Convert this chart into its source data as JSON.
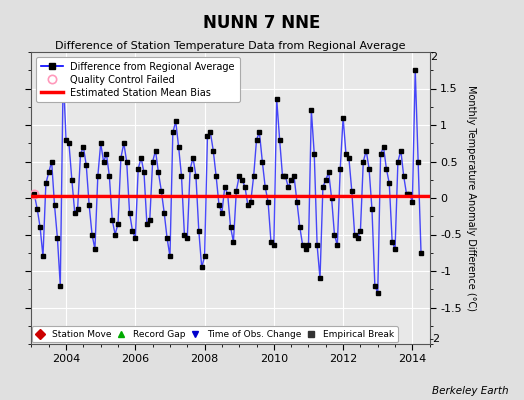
{
  "title": "NUNN 7 NNE",
  "subtitle": "Difference of Station Temperature Data from Regional Average",
  "ylabel": "Monthly Temperature Anomaly Difference (°C)",
  "bias": 0.03,
  "xlim": [
    2003.0,
    2014.5
  ],
  "ylim": [
    -2.0,
    2.0
  ],
  "yticks": [
    -1.5,
    -1.0,
    -0.5,
    0.0,
    0.5,
    1.0,
    1.5
  ],
  "ytick_labels": [
    "-1.5",
    "-1",
    "-0.5",
    "0",
    "0.5",
    "1",
    "1.5"
  ],
  "xticks": [
    2004,
    2006,
    2008,
    2010,
    2012,
    2014
  ],
  "fig_bg_color": "#e0e0e0",
  "plot_bg_color": "#e8e8e8",
  "line_color": "#0000ff",
  "marker_color": "#000000",
  "bias_color": "#ff0000",
  "times": [
    2003.083,
    2003.167,
    2003.25,
    2003.333,
    2003.417,
    2003.5,
    2003.583,
    2003.667,
    2003.75,
    2003.833,
    2003.917,
    2004.0,
    2004.083,
    2004.167,
    2004.25,
    2004.333,
    2004.417,
    2004.5,
    2004.583,
    2004.667,
    2004.75,
    2004.833,
    2004.917,
    2005.0,
    2005.083,
    2005.167,
    2005.25,
    2005.333,
    2005.417,
    2005.5,
    2005.583,
    2005.667,
    2005.75,
    2005.833,
    2005.917,
    2006.0,
    2006.083,
    2006.167,
    2006.25,
    2006.333,
    2006.417,
    2006.5,
    2006.583,
    2006.667,
    2006.75,
    2006.833,
    2006.917,
    2007.0,
    2007.083,
    2007.167,
    2007.25,
    2007.333,
    2007.417,
    2007.5,
    2007.583,
    2007.667,
    2007.75,
    2007.833,
    2007.917,
    2008.0,
    2008.083,
    2008.167,
    2008.25,
    2008.333,
    2008.417,
    2008.5,
    2008.583,
    2008.667,
    2008.75,
    2008.833,
    2008.917,
    2009.0,
    2009.083,
    2009.167,
    2009.25,
    2009.333,
    2009.417,
    2009.5,
    2009.583,
    2009.667,
    2009.75,
    2009.833,
    2009.917,
    2010.0,
    2010.083,
    2010.167,
    2010.25,
    2010.333,
    2010.417,
    2010.5,
    2010.583,
    2010.667,
    2010.75,
    2010.833,
    2010.917,
    2011.0,
    2011.083,
    2011.167,
    2011.25,
    2011.333,
    2011.417,
    2011.5,
    2011.583,
    2011.667,
    2011.75,
    2011.833,
    2011.917,
    2012.0,
    2012.083,
    2012.167,
    2012.25,
    2012.333,
    2012.417,
    2012.5,
    2012.583,
    2012.667,
    2012.75,
    2012.833,
    2012.917,
    2013.0,
    2013.083,
    2013.167,
    2013.25,
    2013.333,
    2013.417,
    2013.5,
    2013.583,
    2013.667,
    2013.75,
    2013.833,
    2013.917,
    2014.0,
    2014.083,
    2014.167,
    2014.25
  ],
  "values": [
    0.05,
    -0.15,
    -0.4,
    -0.8,
    0.2,
    0.35,
    0.5,
    -0.1,
    -0.55,
    -1.2,
    1.7,
    0.8,
    0.75,
    0.25,
    -0.2,
    -0.15,
    0.6,
    0.7,
    0.45,
    -0.1,
    -0.5,
    -0.7,
    0.3,
    0.75,
    0.5,
    0.6,
    0.3,
    -0.3,
    -0.5,
    -0.35,
    0.55,
    0.75,
    0.5,
    -0.2,
    -0.45,
    -0.55,
    0.4,
    0.55,
    0.35,
    -0.35,
    -0.3,
    0.5,
    0.65,
    0.35,
    0.1,
    -0.2,
    -0.55,
    -0.8,
    0.9,
    1.05,
    0.7,
    0.3,
    -0.5,
    -0.55,
    0.4,
    0.55,
    0.3,
    -0.45,
    -0.95,
    -0.8,
    0.85,
    0.9,
    0.65,
    0.3,
    -0.1,
    -0.2,
    0.15,
    0.05,
    -0.4,
    -0.6,
    0.1,
    0.3,
    0.25,
    0.15,
    -0.1,
    -0.05,
    0.3,
    0.8,
    0.9,
    0.5,
    0.15,
    -0.05,
    -0.6,
    -0.65,
    1.35,
    0.8,
    0.3,
    0.3,
    0.15,
    0.25,
    0.3,
    -0.05,
    -0.4,
    -0.65,
    -0.7,
    -0.65,
    1.2,
    0.6,
    -0.65,
    -1.1,
    0.15,
    0.25,
    0.35,
    0.0,
    -0.5,
    -0.65,
    0.4,
    1.1,
    0.6,
    0.55,
    0.1,
    -0.5,
    -0.55,
    -0.45,
    0.5,
    0.65,
    0.4,
    -0.15,
    -1.2,
    -1.3,
    0.6,
    0.7,
    0.4,
    0.2,
    -0.6,
    -0.7,
    0.5,
    0.65,
    0.3,
    0.05,
    0.05,
    -0.05,
    1.75,
    0.5,
    -0.75
  ],
  "qc_failed_times": [
    2003.083
  ],
  "qc_failed_values": [
    0.05
  ],
  "berkeley_earth_label": "Berkeley Earth"
}
